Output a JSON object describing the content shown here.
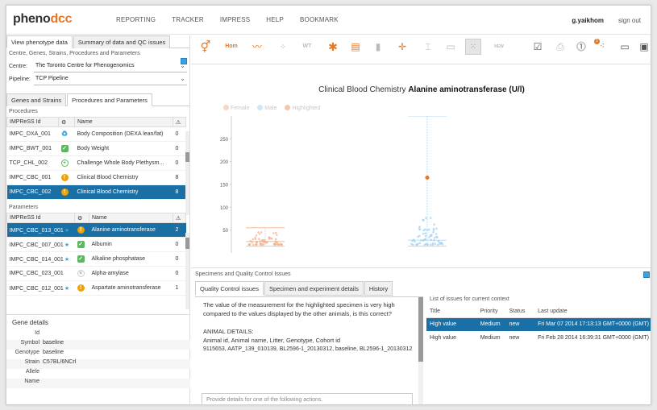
{
  "header": {
    "logo_main": "pheno",
    "logo_accent": "dcc",
    "nav": [
      "REPORTING",
      "TRACKER",
      "IMPRESS",
      "HELP",
      "BOOKMARK"
    ],
    "user": "g.yaikhom",
    "signout": "sign out"
  },
  "left": {
    "tabs": [
      "View phenotype data",
      "Summary of data and QC issues"
    ],
    "filter_title": "Centre, Genes, Strains, Procedures and Parameters",
    "centre_label": "Centre:",
    "centre_value": "The Toronto Centre for Phenogenomics",
    "pipeline_label": "Pipeline:",
    "pipeline_value": "TCP Pipeline",
    "subtabs": [
      "Genes and Strains",
      "Procedures and Parameters"
    ],
    "procedures_title": "Procedures",
    "procedures_cols": [
      "IMPReSS Id",
      "⚙",
      "Name",
      "⚠"
    ],
    "procedures": [
      {
        "id": "IMPC_DXA_001",
        "icon": "rec",
        "glyph": "♻",
        "name": "Body Composition (DEXA lean/fat)",
        "count": "0"
      },
      {
        "id": "IMPC_BWT_001",
        "icon": "ok",
        "glyph": "✓",
        "name": "Body Weight",
        "count": "0"
      },
      {
        "id": "TCP_CHL_002",
        "icon": "add",
        "glyph": "+",
        "name": "Challenge Whole Body Plethysm...",
        "count": "0"
      },
      {
        "id": "IMPC_CBC_001",
        "icon": "warn",
        "glyph": "!",
        "name": "Clinical Blood Chemistry",
        "count": "8"
      },
      {
        "id": "IMPC_CBC_002",
        "icon": "warn",
        "glyph": "!",
        "name": "Clinical Blood Chemistry",
        "count": "8"
      }
    ],
    "parameters_title": "Parameters",
    "parameters_cols": [
      "IMPReSS Id",
      "⚙",
      "Name",
      "⚠"
    ],
    "parameters": [
      {
        "id": "IMPC_CBC_013_001",
        "star": "★",
        "icon": "warn",
        "glyph": "!",
        "name": "Alanine aminotransferase",
        "count": "2"
      },
      {
        "id": "IMPC_CBC_007_001",
        "star": "★",
        "icon": "ok",
        "glyph": "✓",
        "name": "Albumin",
        "count": "0"
      },
      {
        "id": "IMPC_CBC_014_001",
        "star": "★",
        "icon": "ok",
        "glyph": "✓",
        "name": "Alkaline phosphatase",
        "count": "0"
      },
      {
        "id": "IMPC_CBC_023_001",
        "star": "",
        "icon": "x",
        "glyph": "×",
        "name": "Alpha-amylase",
        "count": "0"
      },
      {
        "id": "IMPC_CBC_012_001",
        "star": "★",
        "icon": "warn",
        "glyph": "!",
        "name": "Aspartate aminotransferase",
        "count": "1"
      }
    ],
    "gene_title": "Gene details",
    "gene": [
      {
        "k": "Id",
        "v": ""
      },
      {
        "k": "Symbol",
        "v": "baseline"
      },
      {
        "k": "Genotype",
        "v": "baseline"
      },
      {
        "k": "Strain",
        "v": "C57BL/6NCrl"
      },
      {
        "k": "Allele",
        "v": ""
      },
      {
        "k": "Name",
        "v": ""
      }
    ]
  },
  "toolbar": {
    "hom_label": "Hom",
    "wt_label": "WT",
    "new_label": "NEW",
    "badge": "1"
  },
  "chart_data": {
    "type": "scatter",
    "title": "Clinical Blood Chemistry",
    "title_bold": "Alanine aminotransferase (U/l)",
    "legend": [
      "Female",
      "Male",
      "Highlighted"
    ],
    "colors": {
      "female": "#f5b08a",
      "male": "#9cd0ef",
      "highlighted": "#e87722"
    },
    "yticks": [
      50,
      100,
      150,
      200,
      250
    ],
    "ylim": [
      0,
      300
    ],
    "groups": [
      {
        "name": "Female",
        "min": 15,
        "max": 55,
        "median": 25
      },
      {
        "name": "Male",
        "min": 15,
        "max": 300,
        "median": 28
      }
    ],
    "highlighted": {
      "group": "Male",
      "y": 165
    }
  },
  "issues": {
    "title": "Specimens and Quality Control Issues",
    "tabs": [
      "Quality Control issues",
      "Specimen and experiment details",
      "History"
    ],
    "message": "The value of the measurement for the highlighted specimen is very high compared to the values displayed by the other animals, is this correct?",
    "animal_title": "ANIMAL DETAILS:",
    "animal_fields": "Animal id, Animal name, Litter, Genotype, Cohort id",
    "animal_values": "9115653, AATP_139_010139, BL2596-1_20130312, baseline, BL2596-1_20130312",
    "detail_placeholder": "Provide details for one of the following actions.",
    "list_title": "List of issues for current context",
    "cols": [
      "Title",
      "Priority",
      "Status",
      "Last update"
    ],
    "rows": [
      {
        "title": "High value",
        "priority": "Medium",
        "status": "new",
        "updated": "Fri Mar 07 2014 17:13:13 GMT+0000 (GMT)"
      },
      {
        "title": "High value",
        "priority": "Medium",
        "status": "new",
        "updated": "Fri Feb 28 2014 16:39:31 GMT+0000 (GMT)"
      }
    ]
  }
}
